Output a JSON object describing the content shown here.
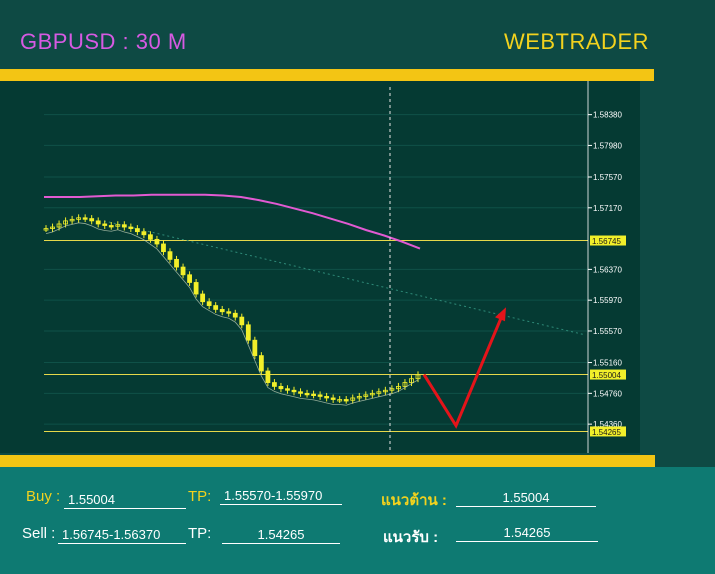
{
  "header": {
    "symbol_title": "GBPUSD : 30 M",
    "brand": "WEBTRADER"
  },
  "colors": {
    "background": "#0e4a44",
    "chart_bg": "#053a33",
    "accent_bar": "#f3c514",
    "panel_bg": "#0e7a72",
    "candle": "#f2ef2a",
    "ma_line": "#e25ad2",
    "level_line": "#e6d84a",
    "arrow": "#e4141a"
  },
  "chart_data": {
    "type": "candlestick",
    "y_ticks": [
      "1.58380",
      "1.57980",
      "1.57570",
      "1.57170",
      "1.56370",
      "1.55970",
      "1.55570",
      "1.55160",
      "1.54760",
      "1.54360"
    ],
    "ylim": [
      1.5405,
      1.587
    ],
    "price_levels": [
      {
        "label": "1.56745",
        "value": 1.56745
      },
      {
        "label": "1.55004",
        "value": 1.55004
      },
      {
        "label": "1.54265",
        "value": 1.54265
      }
    ],
    "price_closes": [
      1.569,
      1.5692,
      1.5696,
      1.57,
      1.5702,
      1.5704,
      1.5703,
      1.57,
      1.5696,
      1.5694,
      1.5693,
      1.5695,
      1.5692,
      1.569,
      1.5686,
      1.5682,
      1.5676,
      1.567,
      1.566,
      1.565,
      1.564,
      1.563,
      1.562,
      1.5605,
      1.5595,
      1.559,
      1.5585,
      1.5582,
      1.558,
      1.5575,
      1.5565,
      1.5545,
      1.5525,
      1.5505,
      1.549,
      1.5485,
      1.5482,
      1.548,
      1.5478,
      1.5476,
      1.5475,
      1.5474,
      1.5472,
      1.547,
      1.5468,
      1.5468,
      1.5467,
      1.547,
      1.5472,
      1.5474,
      1.5476,
      1.5478,
      1.548,
      1.5482,
      1.5485,
      1.549,
      1.5495,
      1.55
    ],
    "moving_average": [
      1.5731,
      1.5731,
      1.5731,
      1.5732,
      1.5733,
      1.5733,
      1.5734,
      1.5734,
      1.5734,
      1.5734,
      1.5733,
      1.5731,
      1.5727,
      1.5722,
      1.5716,
      1.571,
      1.5703,
      1.5696,
      1.5688,
      1.5681,
      1.5673,
      1.5664
    ],
    "trendline": {
      "from": 1.57,
      "to": 1.5552
    },
    "projection": [
      1.55004,
      1.5434,
      1.558
    ]
  },
  "panel": {
    "buy_label": "Buy :",
    "buy_value": "1.55004",
    "buy_tp_label": "TP:",
    "buy_tp_value": "1.55570-1.55970",
    "resistance_label": "แนวต้าน  :",
    "resistance_value": "1.55004",
    "sell_label": "Sell :",
    "sell_value": "1.56745-1.56370",
    "sell_tp_label": "TP:",
    "sell_tp_value": "1.54265",
    "support_label": "แนวรับ   :",
    "support_value": "1.54265"
  }
}
